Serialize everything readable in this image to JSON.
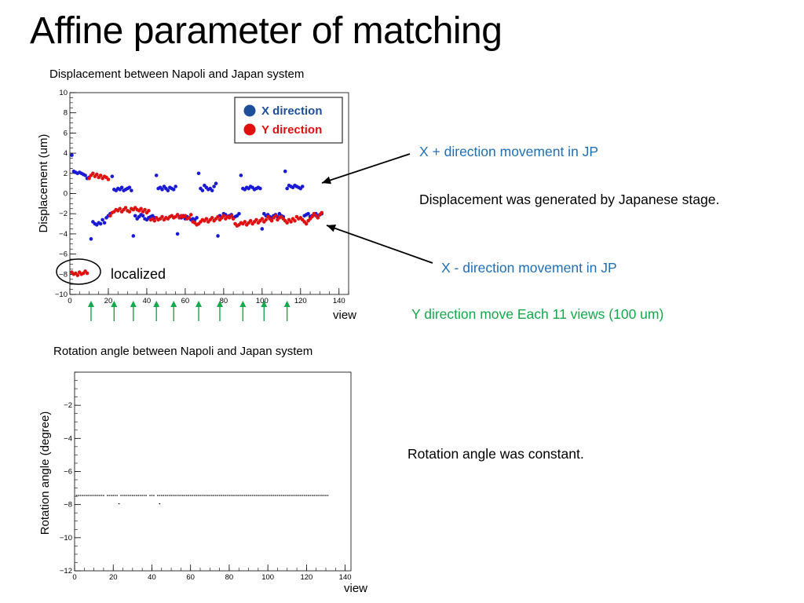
{
  "slide": {
    "title": "Affine parameter of matching"
  },
  "colors": {
    "x_series": "#1a1ad6",
    "y_series": "#e01010",
    "annotation_blue": "#1f6fb5",
    "annotation_green": "#14a84a",
    "arrow_green": "#14a84a",
    "legend_x": "#1f4e99",
    "legend_y": "#e01010"
  },
  "annotations": {
    "x_plus": "X + direction movement in JP",
    "displacement_note": "Displacement was generated by Japanese stage.",
    "x_minus": "X - direction movement in JP",
    "y_move": "Y direction move Each 11 views (100 um)",
    "localized": "localized",
    "rotation_note": "Rotation angle was constant."
  },
  "chart_data": [
    {
      "type": "scatter",
      "title": "Displacement between Napoli and Japan system",
      "xlabel": "view",
      "ylabel": "Displacement (um)",
      "xlim": [
        0,
        145
      ],
      "ylim": [
        -10,
        10
      ],
      "xticks": [
        0,
        20,
        40,
        60,
        80,
        100,
        120,
        140
      ],
      "yticks": [
        -10,
        -8,
        -6,
        -4,
        -2,
        0,
        2,
        4,
        6,
        8,
        10
      ],
      "grid": false,
      "legend_position": "top-right",
      "series": [
        {
          "name": "X direction",
          "color": "#1a1ad6",
          "x": [
            1,
            2,
            3,
            4,
            5,
            6,
            7,
            8,
            9,
            10,
            11,
            12,
            13,
            14,
            15,
            16,
            17,
            18,
            19,
            20,
            21,
            22,
            23,
            24,
            25,
            26,
            27,
            28,
            29,
            30,
            31,
            32,
            33,
            34,
            35,
            36,
            37,
            38,
            39,
            40,
            41,
            42,
            43,
            44,
            45,
            46,
            47,
            48,
            49,
            50,
            51,
            52,
            53,
            54,
            55,
            56,
            57,
            58,
            59,
            60,
            61,
            62,
            63,
            64,
            65,
            66,
            67,
            68,
            69,
            70,
            71,
            72,
            73,
            74,
            75,
            76,
            77,
            78,
            79,
            80,
            81,
            82,
            83,
            84,
            85,
            86,
            87,
            88,
            89,
            90,
            91,
            92,
            93,
            94,
            95,
            96,
            97,
            98,
            99,
            100,
            101,
            102,
            103,
            104,
            105,
            106,
            107,
            108,
            109,
            110,
            111,
            112,
            113,
            114,
            115,
            116,
            117,
            118,
            119,
            120,
            121,
            122,
            123,
            124,
            125,
            126,
            127,
            128,
            129,
            130,
            131
          ],
          "y": [
            3.8,
            2.2,
            2.1,
            2.0,
            2.1,
            2.0,
            1.9,
            1.8,
            1.5,
            1.6,
            -4.5,
            -2.8,
            -3.0,
            -3.1,
            -2.9,
            -3.0,
            -2.6,
            -2.9,
            -2.4,
            -2.2,
            -2.0,
            1.7,
            0.4,
            0.3,
            0.5,
            0.4,
            0.6,
            0.3,
            0.4,
            0.5,
            0.6,
            0.3,
            -4.2,
            -2.2,
            -2.5,
            -2.3,
            -2.1,
            -2.2,
            -2.5,
            -2.6,
            -2.4,
            -2.3,
            -2.2,
            -2.4,
            1.8,
            0.5,
            0.6,
            0.4,
            0.7,
            0.5,
            0.3,
            0.6,
            0.5,
            0.4,
            0.7,
            -4.0,
            -2.3,
            -2.4,
            -2.2,
            -2.5,
            -2.3,
            -2.4,
            -2.6,
            -2.5,
            -2.6,
            -2.4,
            2.0,
            0.5,
            0.3,
            0.8,
            0.6,
            0.4,
            0.5,
            0.3,
            0.7,
            1.0,
            -4.2,
            -2.2,
            -2.4,
            -2.0,
            -2.1,
            -2.3,
            -2.2,
            -2.1,
            -2.4,
            -2.3,
            -2.2,
            -2.0,
            1.8,
            0.5,
            0.4,
            0.6,
            0.5,
            0.7,
            0.6,
            0.4,
            0.5,
            0.6,
            0.5,
            -3.5,
            -2.0,
            -2.2,
            -2.1,
            -2.3,
            -2.4,
            -2.2,
            -2.1,
            -2.3,
            -2.0,
            -2.2,
            -2.3,
            2.2,
            0.5,
            0.8,
            0.7,
            0.6,
            0.8,
            0.7,
            0.6,
            0.5,
            0.7,
            -2.2,
            -2.1,
            -2.0,
            -2.3,
            -2.2,
            -2.1,
            -2.0,
            -2.2,
            -2.1,
            -2.0
          ]
        },
        {
          "name": "Y direction",
          "color": "#e01010",
          "x": [
            1,
            2,
            3,
            4,
            5,
            6,
            7,
            8,
            9,
            10,
            11,
            12,
            13,
            14,
            15,
            16,
            17,
            18,
            19,
            20,
            21,
            22,
            23,
            24,
            25,
            26,
            27,
            28,
            29,
            30,
            31,
            32,
            33,
            34,
            35,
            36,
            37,
            38,
            39,
            40,
            41,
            42,
            43,
            44,
            45,
            46,
            47,
            48,
            49,
            50,
            51,
            52,
            53,
            54,
            55,
            56,
            57,
            58,
            59,
            60,
            61,
            62,
            63,
            64,
            65,
            66,
            67,
            68,
            69,
            70,
            71,
            72,
            73,
            74,
            75,
            76,
            77,
            78,
            79,
            80,
            81,
            82,
            83,
            84,
            85,
            86,
            87,
            88,
            89,
            90,
            91,
            92,
            93,
            94,
            95,
            96,
            97,
            98,
            99,
            100,
            101,
            102,
            103,
            104,
            105,
            106,
            107,
            108,
            109,
            110,
            111,
            112,
            113,
            114,
            115,
            116,
            117,
            118,
            119,
            120,
            121,
            122,
            123,
            124,
            125,
            126,
            127,
            128,
            129,
            130,
            131
          ],
          "y": [
            -7.8,
            -8.0,
            -7.9,
            -8.1,
            -7.8,
            -8.0,
            -7.9,
            -7.7,
            -7.9,
            1.5,
            1.8,
            2.0,
            1.7,
            1.9,
            1.6,
            1.8,
            1.5,
            1.7,
            1.6,
            1.4,
            -2.2,
            -1.9,
            -1.8,
            -1.6,
            -1.7,
            -1.5,
            -1.8,
            -1.6,
            -1.4,
            -1.7,
            -1.8,
            -1.5,
            -1.6,
            -1.4,
            -1.6,
            -1.7,
            -1.5,
            -1.8,
            -1.6,
            -1.9,
            -1.7,
            -2.6,
            -2.5,
            -2.7,
            -2.4,
            -2.6,
            -2.5,
            -2.3,
            -2.6,
            -2.4,
            -2.5,
            -2.3,
            -2.2,
            -2.4,
            -2.3,
            -2.1,
            -2.4,
            -2.2,
            -2.3,
            -2.2,
            -2.5,
            -2.4,
            -2.1,
            -2.8,
            -2.9,
            -3.1,
            -3.0,
            -2.8,
            -2.6,
            -2.7,
            -2.5,
            -2.8,
            -2.6,
            -2.4,
            -2.7,
            -2.5,
            -2.3,
            -2.6,
            -2.4,
            -2.2,
            -2.5,
            -2.3,
            -2.4,
            -2.2,
            -2.5,
            -3.0,
            -3.2,
            -3.1,
            -2.9,
            -3.0,
            -2.8,
            -3.1,
            -2.9,
            -2.7,
            -3.0,
            -2.8,
            -2.6,
            -2.9,
            -2.7,
            -2.5,
            -2.8,
            -2.6,
            -2.3,
            -2.5,
            -2.7,
            -2.4,
            -2.2,
            -2.6,
            -2.4,
            -2.3,
            -2.5,
            -2.7,
            -2.9,
            -2.6,
            -2.8,
            -2.5,
            -2.7,
            -2.3,
            -2.5,
            -2.4,
            -2.6,
            -2.8,
            -3.0,
            -2.7,
            -2.5,
            -2.3,
            -2.0,
            -2.2,
            -2.4,
            -2.1,
            -1.9
          ]
        }
      ]
    },
    {
      "type": "scatter",
      "title": "Rotation angle between Napoli and Japan system",
      "xlabel": "view",
      "ylabel": "Rotation angle (degree)",
      "xlim": [
        0,
        143
      ],
      "ylim": [
        -12,
        0
      ],
      "xticks": [
        0,
        20,
        40,
        60,
        80,
        100,
        120,
        140
      ],
      "yticks": [
        -12,
        -10,
        -8,
        -6,
        -4,
        -2
      ],
      "grid": false,
      "series": [
        {
          "color": "#000000",
          "x_start": 1,
          "x_end": 131,
          "y_constant": -7.45,
          "gaps_after": [
            16,
            23,
            38,
            42
          ],
          "outliers": [
            [
              23,
              -7.95
            ],
            [
              44,
              -7.95
            ]
          ]
        }
      ]
    }
  ]
}
